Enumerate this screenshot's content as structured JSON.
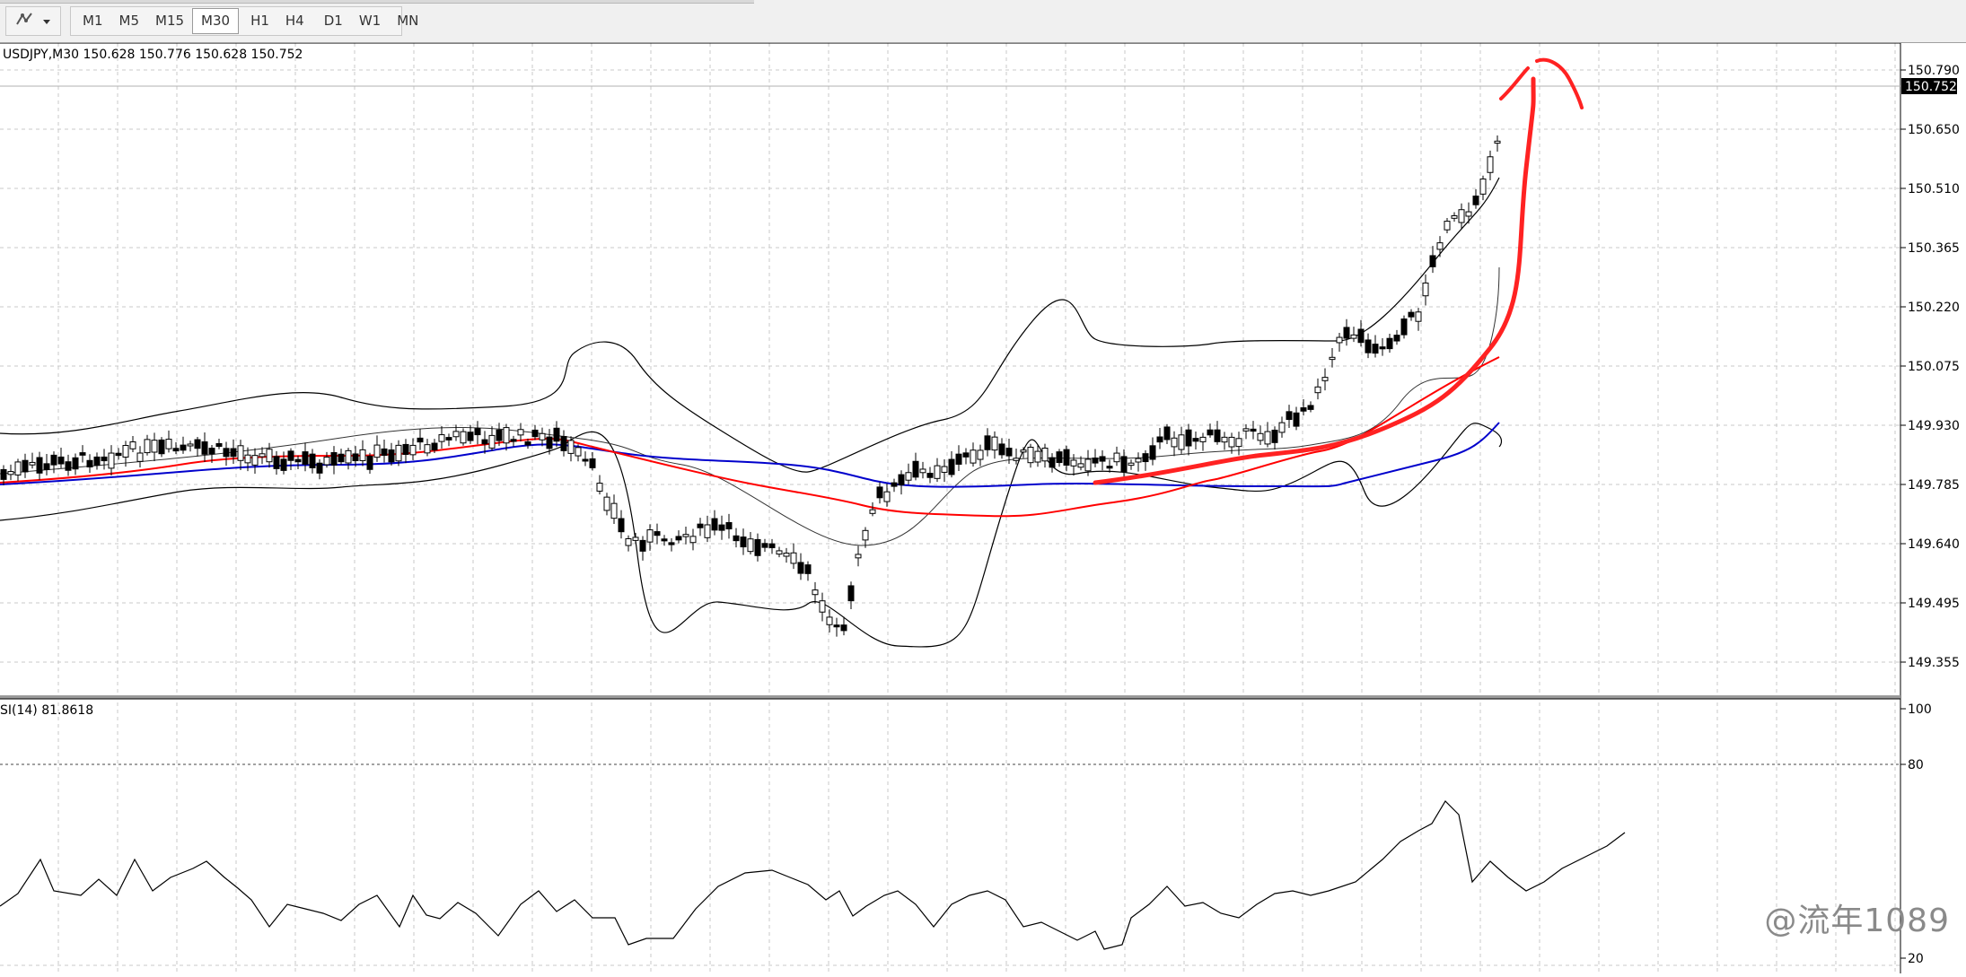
{
  "toolbar": {
    "timeframes": [
      "M1",
      "M5",
      "M15",
      "M30",
      "H1",
      "H4",
      "D1",
      "W1",
      "MN"
    ],
    "active_timeframe": "M30"
  },
  "chart": {
    "header": "USDJPY,M30  150.628 150.776 150.628 150.752",
    "current_price": "150.752",
    "price_ticks": [
      "150.790",
      "150.650",
      "150.510",
      "150.365",
      "150.220",
      "150.075",
      "149.930",
      "149.785",
      "149.640",
      "149.495",
      "149.355"
    ],
    "colors": {
      "candle": "#000000",
      "ma_fast": "#ff0000",
      "ma_slow": "#0000cc",
      "bands": "#000000",
      "annotation": "#ff2222",
      "grid": "#c8c8c8"
    }
  },
  "indicator": {
    "label": "SI(14) 81.8618",
    "levels": [
      "100",
      "80",
      "20"
    ]
  },
  "watermark": "@流年1089"
}
